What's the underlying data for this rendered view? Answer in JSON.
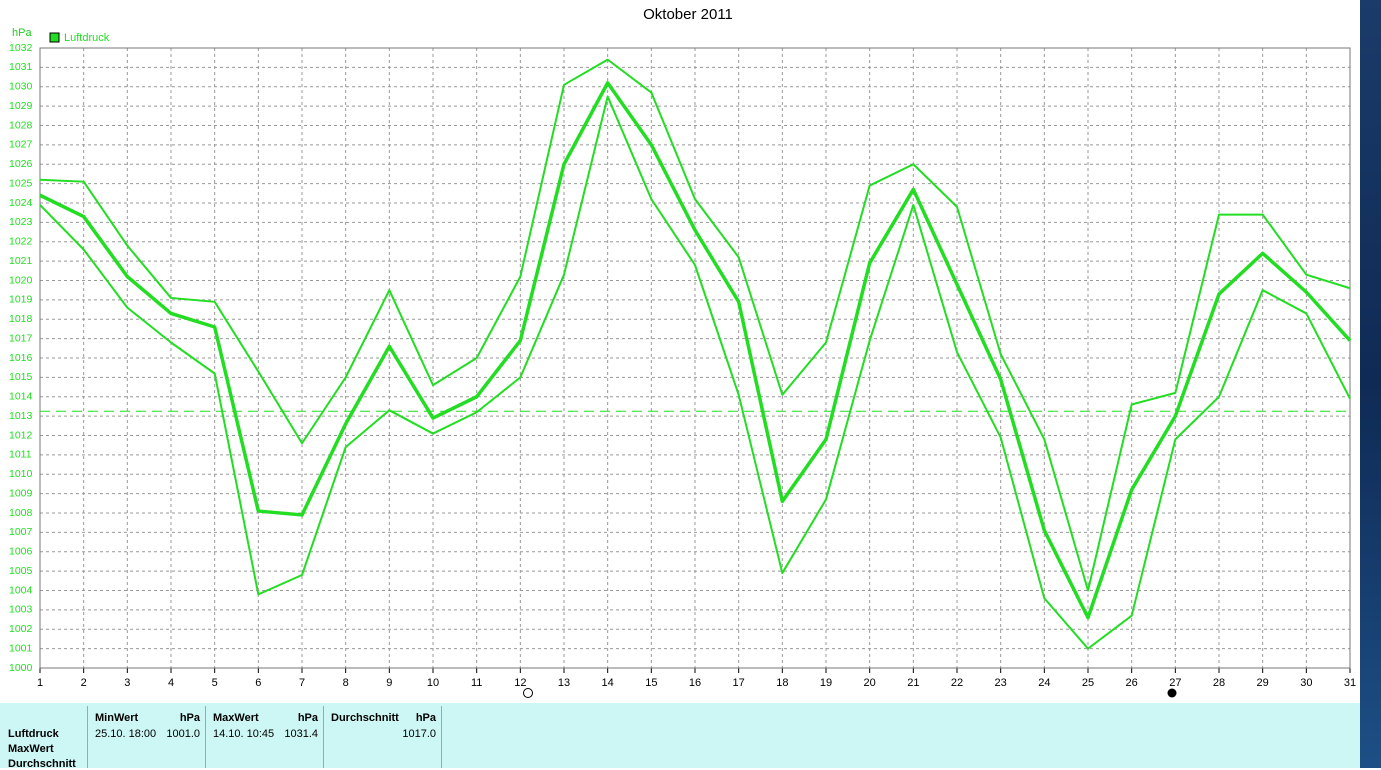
{
  "chart_data": {
    "type": "line",
    "title": "Oktober 2011",
    "y_unit": "hPa",
    "x": [
      1,
      2,
      3,
      4,
      5,
      6,
      7,
      8,
      9,
      10,
      11,
      12,
      13,
      14,
      15,
      16,
      17,
      18,
      19,
      20,
      21,
      22,
      23,
      24,
      25,
      26,
      27,
      28,
      29,
      30,
      31
    ],
    "xlim": [
      1,
      31
    ],
    "xticks": [
      1,
      2,
      3,
      4,
      5,
      6,
      7,
      8,
      9,
      10,
      11,
      12,
      13,
      14,
      15,
      16,
      17,
      18,
      19,
      20,
      21,
      22,
      23,
      24,
      25,
      26,
      27,
      28,
      29,
      30,
      31
    ],
    "ylim": [
      1000,
      1032
    ],
    "yticks": [
      1000,
      1001,
      1002,
      1003,
      1004,
      1005,
      1006,
      1007,
      1008,
      1009,
      1010,
      1011,
      1012,
      1013,
      1014,
      1015,
      1016,
      1017,
      1018,
      1019,
      1020,
      1021,
      1022,
      1023,
      1024,
      1025,
      1026,
      1027,
      1028,
      1029,
      1030,
      1031,
      1032
    ],
    "grid": true,
    "legend": "top-left",
    "reference_line": 1013.25,
    "series": [
      {
        "name": "Luftdruck",
        "color": "#22dd22",
        "values": [
          1024.4,
          1023.3,
          1020.2,
          1018.3,
          1017.6,
          1008.1,
          1007.9,
          1012.6,
          1016.6,
          1012.9,
          1014.0,
          1016.9,
          1026.0,
          1030.2,
          1027.0,
          1022.6,
          1018.9,
          1008.6,
          1011.8,
          1020.9,
          1024.7,
          1019.8,
          1014.9,
          1007.1,
          1002.6,
          1009.2,
          1013.0,
          1019.3,
          1021.4,
          1019.4,
          1016.9
        ]
      },
      {
        "color": "#22dd22",
        "values": [
          1025.2,
          1025.1,
          1021.8,
          1019.1,
          1018.9,
          1015.3,
          1011.6,
          1015.0,
          1019.5,
          1014.6,
          1016.0,
          1020.2,
          1030.1,
          1031.4,
          1029.7,
          1024.2,
          1021.2,
          1014.1,
          1016.8,
          1024.9,
          1026.0,
          1023.8,
          1016.2,
          1011.8,
          1004.0,
          1013.6,
          1014.2,
          1023.4,
          1023.4,
          1020.3,
          1019.6
        ]
      },
      {
        "color": "#22dd22",
        "values": [
          1023.9,
          1021.6,
          1018.6,
          1016.8,
          1015.2,
          1003.8,
          1004.8,
          1011.4,
          1013.3,
          1012.1,
          1013.2,
          1015.0,
          1020.3,
          1029.5,
          1024.2,
          1020.8,
          1014.1,
          1004.9,
          1008.7,
          1016.9,
          1023.9,
          1016.3,
          1011.9,
          1003.6,
          1001.0,
          1002.7,
          1011.8,
          1014.0,
          1019.5,
          1018.3,
          1013.9
        ]
      }
    ]
  },
  "summary": {
    "row_labels": [
      "Luftdruck",
      "MaxWert",
      "Durchschnitt"
    ],
    "min": {
      "header": "MinWert",
      "unit": "hPa",
      "time": "25.10. 18:00",
      "value": "1001.0"
    },
    "max": {
      "header": "MaxWert",
      "unit": "hPa",
      "time": "14.10. 10:45",
      "value": "1031.4"
    },
    "avg": {
      "header": "Durchschnitt",
      "unit": "hPa",
      "value": "1017.0"
    }
  }
}
